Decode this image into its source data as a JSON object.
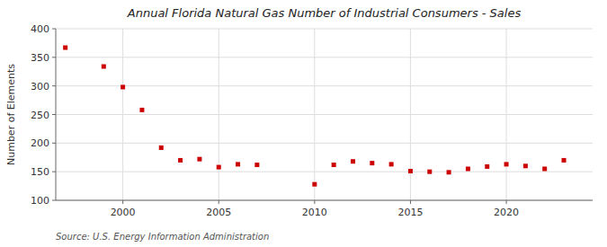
{
  "chart_data": {
    "type": "scatter",
    "title": "Annual Florida Natural Gas Number of Industrial Consumers - Sales",
    "y_label": "Number of Elements",
    "annotation": "Source: U.S. Energy Information Administration",
    "x": [
      1997,
      1999,
      2000,
      2001,
      2002,
      2003,
      2004,
      2005,
      2006,
      2007,
      2010,
      2011,
      2012,
      2013,
      2014,
      2015,
      2016,
      2017,
      2018,
      2019,
      2020,
      2021,
      2022,
      2023
    ],
    "values": [
      367,
      334,
      298,
      258,
      192,
      170,
      172,
      158,
      163,
      162,
      128,
      162,
      168,
      165,
      163,
      151,
      150,
      149,
      155,
      159,
      163,
      160,
      155,
      170
    ],
    "color": "#cc0000",
    "marker": "square",
    "xlim": [
      1996.5,
      2024.5
    ],
    "xticks": [
      2000,
      2005,
      2010,
      2015,
      2020
    ],
    "ylim": [
      100,
      400
    ],
    "yticks": [
      100,
      150,
      200,
      250,
      300,
      350,
      400
    ],
    "grid": true
  }
}
